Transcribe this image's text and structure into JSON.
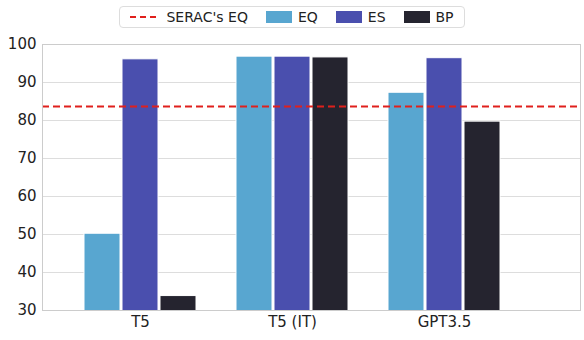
{
  "chart_data": {
    "type": "bar",
    "categories": [
      "T5",
      "T5 (IT)",
      "GPT3.5"
    ],
    "series": [
      {
        "name": "EQ",
        "color": "#58a6d0",
        "values": [
          50.2,
          96.8,
          87.3
        ]
      },
      {
        "name": "ES",
        "color": "#4a4fae",
        "values": [
          96.1,
          96.8,
          96.4
        ]
      },
      {
        "name": "BP",
        "color": "#25242f",
        "values": [
          33.8,
          96.6,
          79.7
        ]
      }
    ],
    "reference_lines": [
      {
        "name": "SERAC's EQ",
        "value": 83.7,
        "color": "#e0201c",
        "line_style": "dashed"
      }
    ],
    "ylim": [
      30,
      100
    ],
    "yticks": [
      30,
      40,
      50,
      60,
      70,
      80,
      90,
      100
    ],
    "grid": true,
    "legend": "top"
  }
}
